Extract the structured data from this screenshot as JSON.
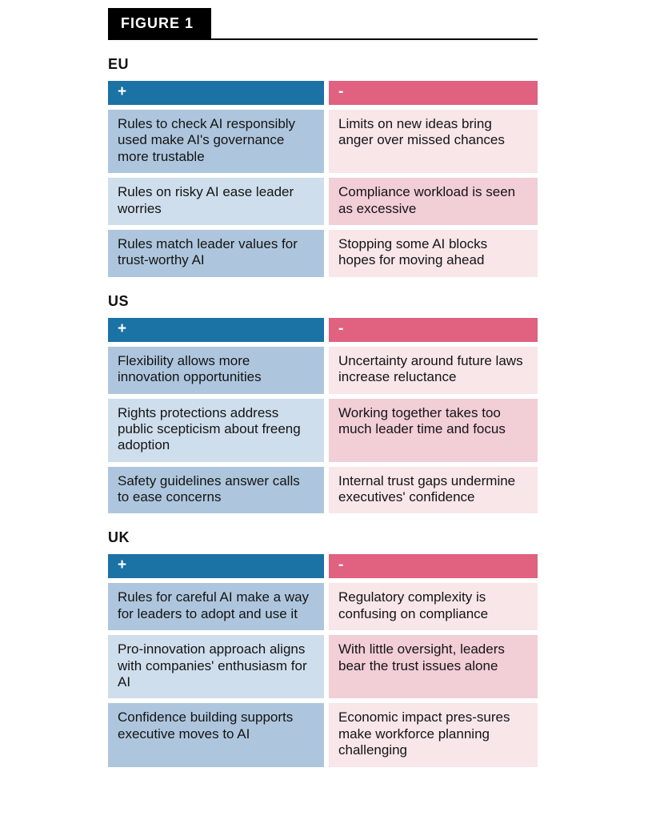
{
  "figure": {
    "label": "FIGURE 1"
  },
  "colors": {
    "positive_header_bg": "#1b72a4",
    "negative_header_bg": "#e06180",
    "positive_cell_dark": "#aec6dd",
    "positive_cell_light": "#cfdeec",
    "negative_cell_light": "#f8e6e9",
    "negative_cell_dark": "#f2ced6"
  },
  "sections": [
    {
      "title": "EU",
      "positive_header": "+",
      "negative_header": "-",
      "rows": [
        {
          "positive": "Rules to check AI responsibly used make AI's governance more trustable",
          "negative": "Limits on new ideas bring anger over missed chances"
        },
        {
          "positive": "Rules on risky AI ease leader worries",
          "negative": "Compliance workload is seen as excessive"
        },
        {
          "positive": "Rules match leader values for trust-worthy AI",
          "negative": "Stopping some AI blocks hopes for moving ahead"
        }
      ]
    },
    {
      "title": "US",
      "positive_header": "+",
      "negative_header": "-",
      "rows": [
        {
          "positive": "Flexibility allows more innovation opportunities",
          "negative": "Uncertainty around future laws increase reluctance"
        },
        {
          "positive": "Rights protections address public scepticism about freeng adoption",
          "negative": "Working together takes too much leader time and focus"
        },
        {
          "positive": "Safety guidelines answer calls to ease concerns",
          "negative": "Internal trust gaps undermine executives' confidence"
        }
      ]
    },
    {
      "title": "UK",
      "positive_header": "+",
      "negative_header": "-",
      "rows": [
        {
          "positive": "Rules for careful AI make a way for leaders to adopt and use it",
          "negative": "Regulatory complexity is confusing on compliance"
        },
        {
          "positive": "Pro-innovation approach aligns with companies' enthusiasm for AI",
          "negative": "With little oversight, leaders bear the trust issues alone"
        },
        {
          "positive": "Confidence building supports executive moves to AI",
          "negative": "Economic impact pres-sures make workforce planning challenging"
        }
      ]
    }
  ]
}
